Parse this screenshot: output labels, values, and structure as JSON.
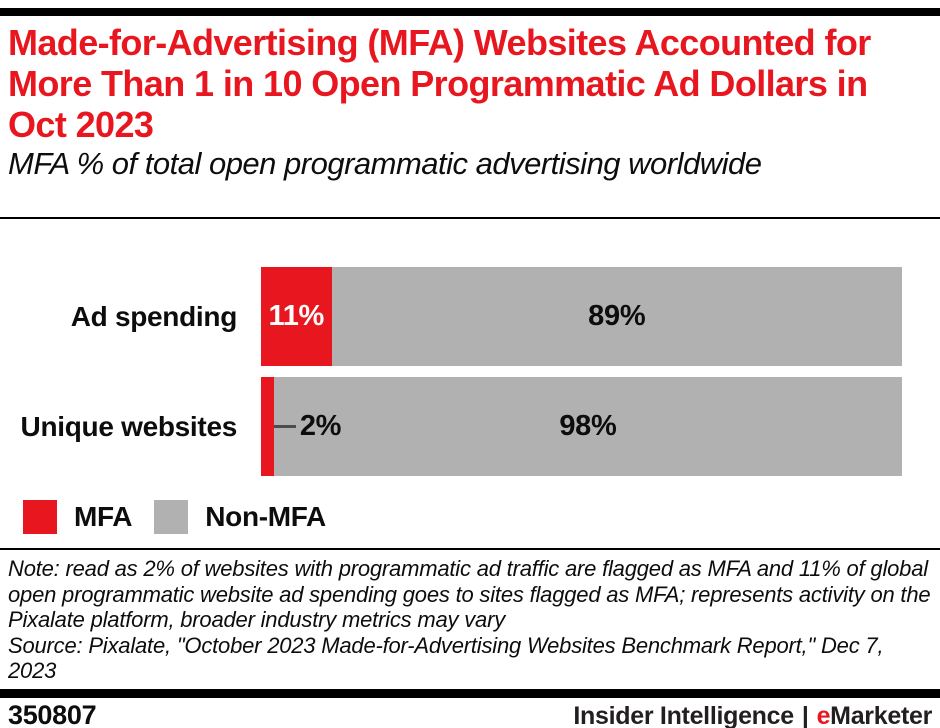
{
  "header": {
    "title": "Made-for-Advertising (MFA) Websites Accounted for More Than 1 in 10 Open Programmatic Ad Dollars in Oct 2023",
    "subtitle": "MFA % of total open programmatic advertising worldwide"
  },
  "chart_data": {
    "type": "bar",
    "orientation": "horizontal",
    "stacked": true,
    "unit": "%",
    "categories": [
      "Ad spending",
      "Unique websites"
    ],
    "series": [
      {
        "name": "MFA",
        "color": "#e8171f",
        "values": [
          11,
          2
        ]
      },
      {
        "name": "Non-MFA",
        "color": "#b1b1b1",
        "values": [
          89,
          98
        ]
      }
    ],
    "value_labels": [
      [
        "11%",
        "89%"
      ],
      [
        "2%",
        "98%"
      ]
    ],
    "xlim": [
      0,
      100
    ],
    "grid": false,
    "legend_position": "bottom-left",
    "title": "Made-for-Advertising (MFA) Websites Accounted for More Than 1 in 10 Open Programmatic Ad Dollars in Oct 2023",
    "subtitle": "MFA % of total open programmatic advertising worldwide"
  },
  "legend": {
    "items": [
      {
        "label": "MFA",
        "color": "#e8171f"
      },
      {
        "label": "Non-MFA",
        "color": "#b1b1b1"
      }
    ]
  },
  "note": "Note: read as 2% of websites with programmatic ad traffic are flagged as MFA and 11% of global open programmatic website ad spending goes to sites flagged as MFA; represents activity on the Pixalate platform, broader industry metrics may vary",
  "source": "Source: Pixalate, \"October 2023 Made-for-Advertising Websites Benchmark Report,\" Dec 7, 2023",
  "footer": {
    "chart_id": "350807",
    "brand_left": "Insider Intelligence",
    "separator": "|",
    "brand_e": "e",
    "brand_rest": "Marketer"
  },
  "colors": {
    "accent_red": "#e8171f",
    "bar_gray": "#b1b1b1",
    "rule_black": "#000000",
    "callout_line": "#4d4d4d"
  }
}
